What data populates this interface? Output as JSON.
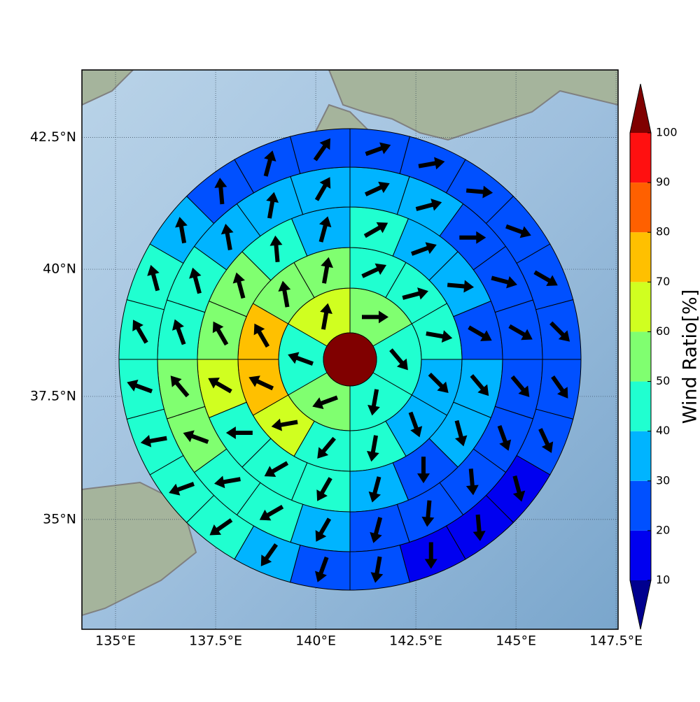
{
  "chart_data": {
    "type": "polar_sectors",
    "projection": "mercator",
    "grid": true,
    "xlim": [
      134.16,
      147.55
    ],
    "ylim": [
      32.7,
      43.74
    ],
    "xticks": [
      {
        "value": 135,
        "label": "135°E"
      },
      {
        "value": 137.5,
        "label": "137.5°E"
      },
      {
        "value": 140,
        "label": "140°E"
      },
      {
        "value": 142.5,
        "label": "142.5°E"
      },
      {
        "value": 145,
        "label": "145°E"
      },
      {
        "value": 147.5,
        "label": "147.5°E"
      }
    ],
    "yticks": [
      {
        "value": 35,
        "label": "35°N"
      },
      {
        "value": 37.5,
        "label": "37.5°N"
      },
      {
        "value": 40,
        "label": "40°N"
      },
      {
        "value": 42.5,
        "label": "42.5°N"
      }
    ],
    "colorbar": {
      "label": "Wind Ratio[%]",
      "bounds": [
        10,
        20,
        30,
        40,
        50,
        60,
        70,
        80,
        90,
        100
      ],
      "colors": [
        "#0000f0",
        "#0050ff",
        "#00b4ff",
        "#20ffd0",
        "#80ff70",
        "#d0ff20",
        "#ffc000",
        "#ff6000",
        "#ff1010"
      ],
      "under": "#00008f",
      "over": "#800000"
    },
    "center_value": 105,
    "rings": [
      {
        "values": [
          55,
          45,
          45,
          55,
          45,
          65
        ],
        "directions": [
          90,
          140,
          190,
          250,
          290,
          10
        ]
      },
      {
        "values": [
          45,
          45,
          45,
          35,
          35,
          45,
          45,
          65,
          75,
          75,
          55,
          55
        ],
        "directions": [
          65,
          75,
          100,
          135,
          160,
          190,
          220,
          260,
          295,
          330,
          350,
          10
        ]
      },
      {
        "values": [
          45,
          35,
          35,
          25,
          35,
          35,
          25,
          35,
          45,
          45,
          45,
          65,
          55,
          55,
          45,
          35
        ],
        "directions": [
          60,
          70,
          95,
          120,
          140,
          165,
          180,
          195,
          210,
          240,
          270,
          300,
          330,
          345,
          355,
          15
        ]
      },
      {
        "values": [
          35,
          35,
          25,
          25,
          25,
          25,
          25,
          25,
          25,
          25,
          35,
          45,
          45,
          55,
          55,
          45,
          45,
          35,
          35,
          35
        ],
        "directions": [
          65,
          75,
          90,
          105,
          120,
          140,
          160,
          175,
          185,
          195,
          210,
          240,
          260,
          290,
          320,
          340,
          345,
          350,
          10,
          30
        ]
      },
      {
        "values": [
          25,
          25,
          25,
          25,
          25,
          25,
          25,
          25,
          15,
          15,
          15,
          25,
          25,
          35,
          45,
          45,
          45,
          45,
          45,
          45,
          35,
          25,
          25,
          25
        ],
        "directions": [
          70,
          80,
          95,
          110,
          120,
          135,
          145,
          155,
          165,
          175,
          180,
          190,
          200,
          215,
          235,
          250,
          260,
          290,
          330,
          345,
          350,
          355,
          15,
          35
        ]
      }
    ]
  }
}
